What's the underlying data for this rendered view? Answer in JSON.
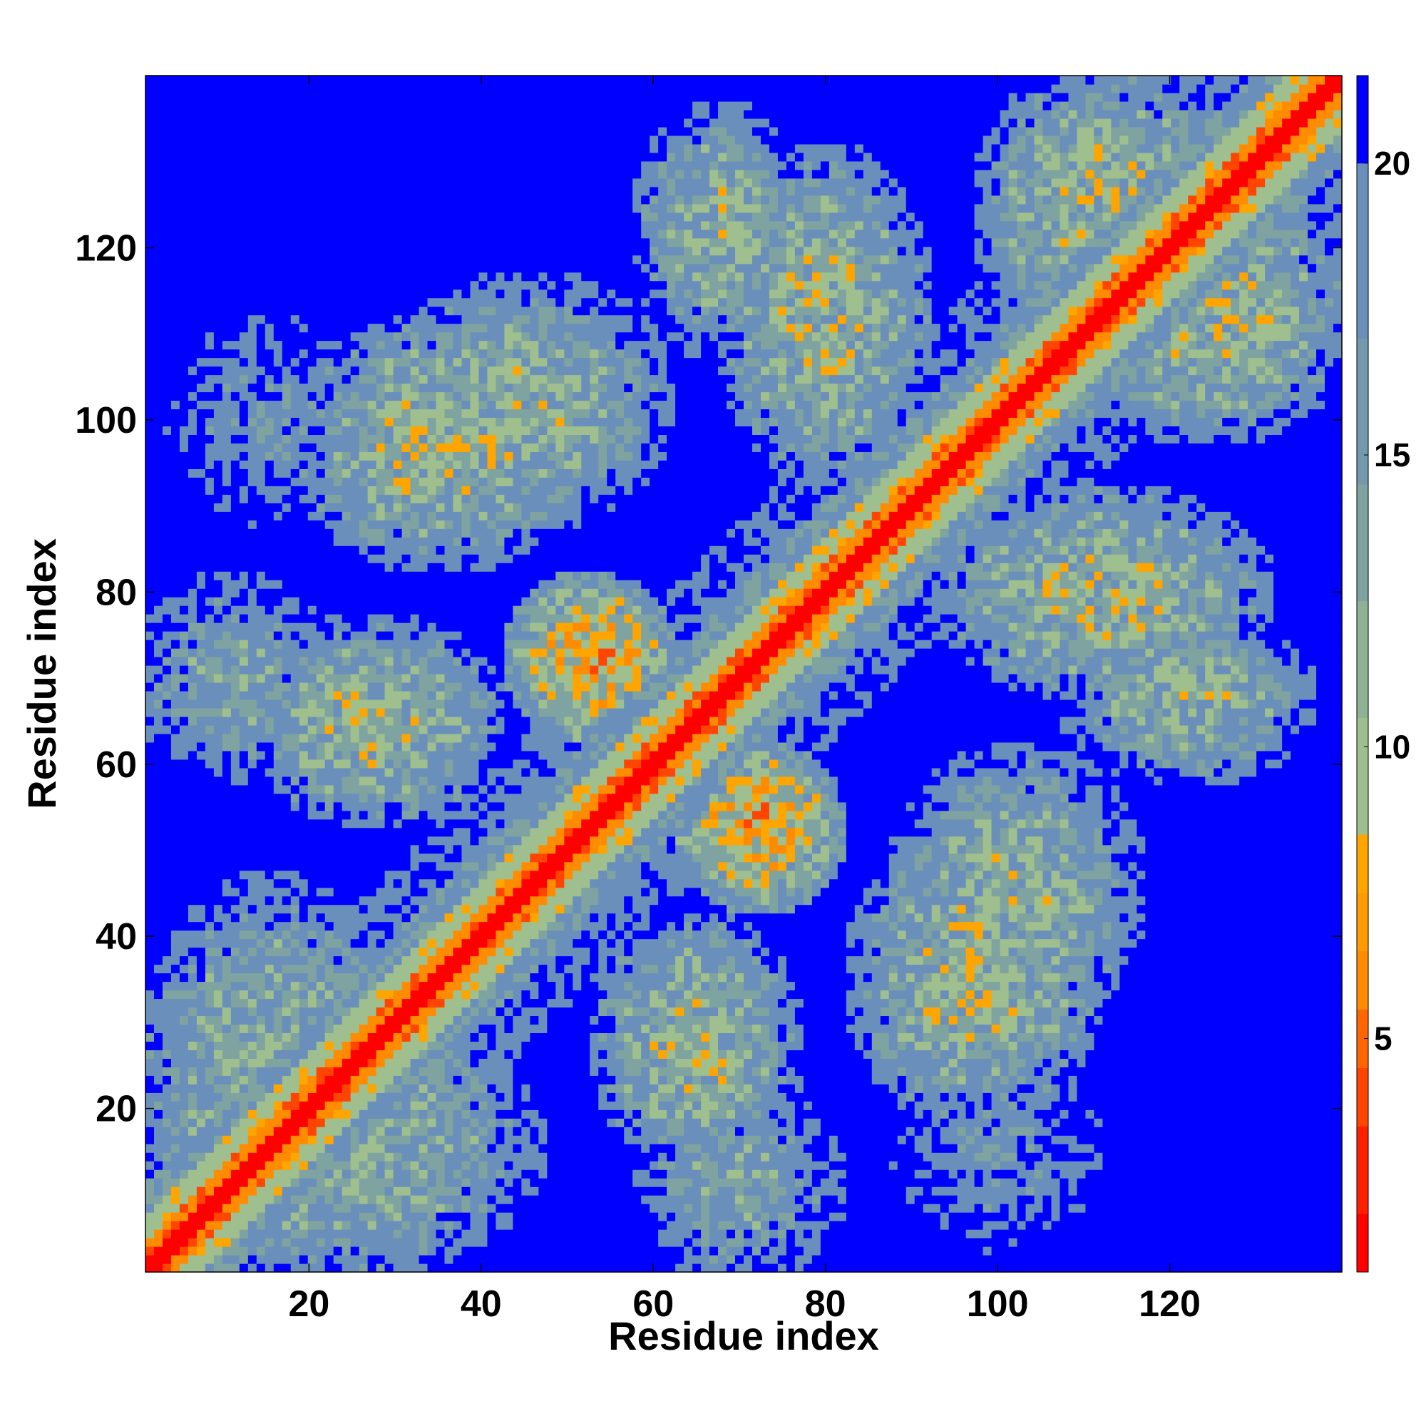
{
  "chart_data": {
    "type": "heatmap",
    "title": "",
    "xlabel": "Residue index",
    "ylabel": "Residue index",
    "n_residues": 140,
    "xlim": [
      1,
      140
    ],
    "ylim": [
      1,
      140
    ],
    "x_ticks": [
      20,
      40,
      60,
      80,
      100,
      120
    ],
    "y_ticks": [
      20,
      40,
      60,
      80,
      100,
      120
    ],
    "colorbar": {
      "range": [
        1,
        21.5
      ],
      "ticks": [
        5,
        10,
        15,
        20
      ],
      "colors": {
        "red": "#ff0000",
        "orange_red": "#ff4500",
        "orange": "#ff8c00",
        "amber": "#ffa500",
        "sage": "#9fbf8f",
        "steel_green": "#7fa3a0",
        "steel_blue": "#6a8fba",
        "blue": "#0000ff"
      }
    },
    "grid": false,
    "symmetric": true,
    "description_of_values": "Pairwise residue distance map; diagonal band low (red), long-range regions high (blue)",
    "contact_regions": [
      {
        "i": [
          1,
          30
        ],
        "j": [
          1,
          45
        ],
        "level": 12
      },
      {
        "i": [
          15,
          40
        ],
        "j": [
          55,
          75
        ],
        "level": 11
      },
      {
        "i": [
          20,
          50
        ],
        "j": [
          85,
          110
        ],
        "level": 11
      },
      {
        "i": [
          45,
          60
        ],
        "j": [
          65,
          80
        ],
        "level": 8
      },
      {
        "i": [
          60,
          75
        ],
        "j": [
          110,
          135
        ],
        "level": 12
      },
      {
        "i": [
          70,
          90
        ],
        "j": [
          95,
          130
        ],
        "level": 11
      },
      {
        "i": [
          30,
          60
        ],
        "j": [
          90,
          115
        ],
        "level": 12
      },
      {
        "i": [
          1,
          20
        ],
        "j": [
          60,
          80
        ],
        "level": 14
      },
      {
        "i": [
          100,
          125
        ],
        "j": [
          110,
          140
        ],
        "level": 11
      },
      {
        "i": [
          5,
          25
        ],
        "j": [
          90,
          110
        ],
        "level": 16
      }
    ]
  }
}
